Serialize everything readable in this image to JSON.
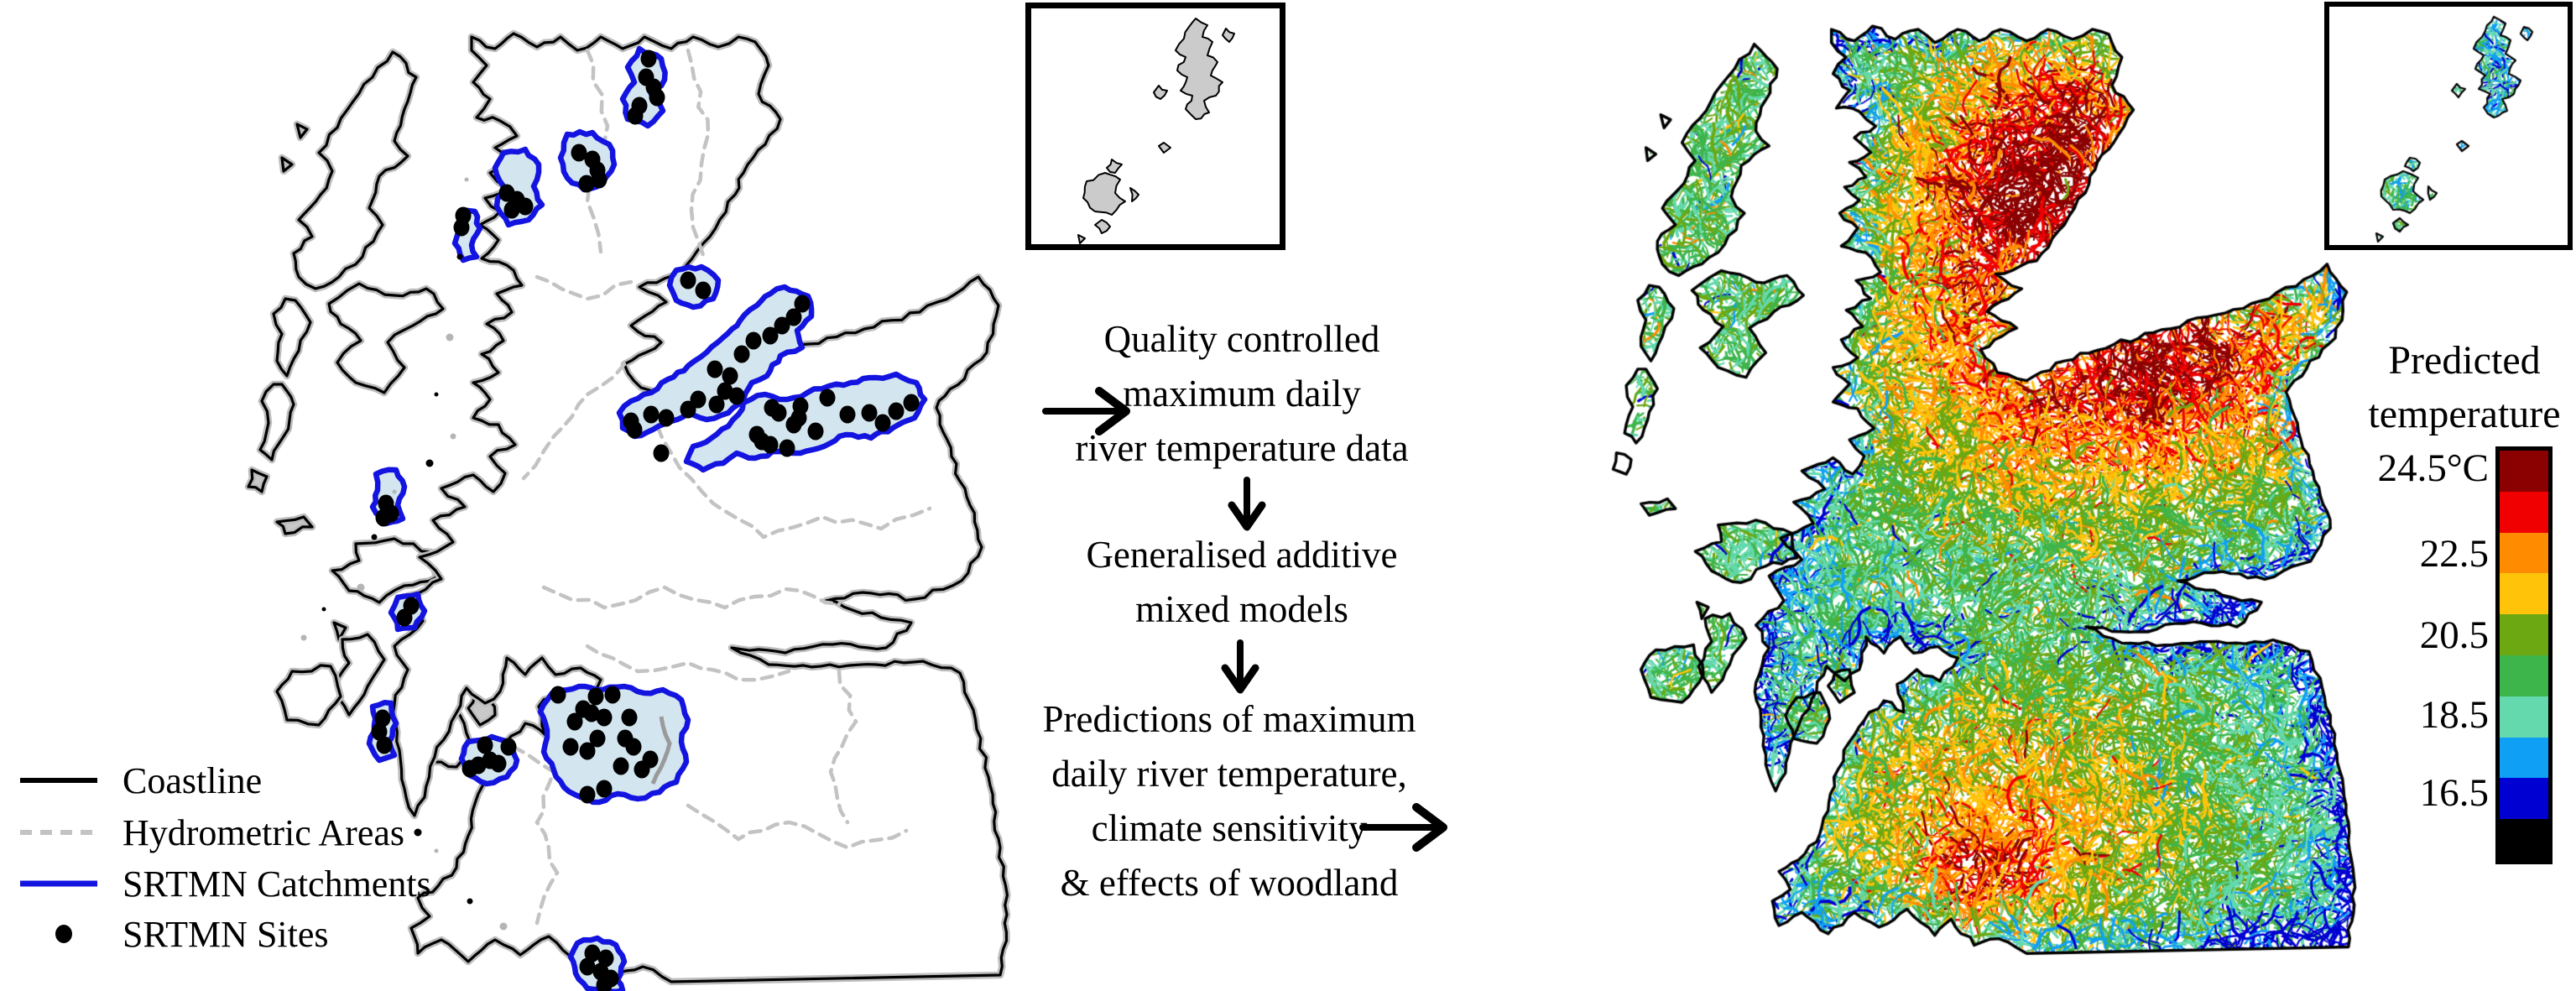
{
  "figure_title": "SRTMN river temperature monitoring and prediction maps of Scotland",
  "left_map": {
    "legend": {
      "items": [
        {
          "label": "Coastline",
          "symbol": "solid-line",
          "color": "#000000"
        },
        {
          "label": "Hydrometric Areas",
          "symbol": "dashed-line",
          "color": "#c3c3c3"
        },
        {
          "label": "SRTMN Catchments",
          "symbol": "solid-line",
          "color": "#1414e0"
        },
        {
          "label": "SRTMN Sites",
          "symbol": "dot",
          "color": "#000000"
        }
      ]
    },
    "styles": {
      "coast_color": "#000000",
      "coast_halo": "#bdbdbd",
      "hydro_color": "#c3c3c3",
      "catchment_fill": "#d3e5ee",
      "catchment_stroke": "#1414e0",
      "site_color": "#000000",
      "small_island_fill": "#c9c9c9"
    },
    "catchments": [
      {
        "poly": [
          [
            762,
            58
          ],
          [
            788,
            70
          ],
          [
            792,
            95
          ],
          [
            776,
            112
          ],
          [
            790,
            132
          ],
          [
            772,
            150
          ],
          [
            748,
            142
          ],
          [
            742,
            118
          ],
          [
            756,
            98
          ],
          [
            748,
            80
          ]
        ],
        "sites": [
          [
            773,
            70
          ],
          [
            770,
            92
          ],
          [
            779,
            104
          ],
          [
            783,
            116
          ],
          [
            762,
            126
          ],
          [
            757,
            138
          ]
        ]
      },
      {
        "poly": [
          [
            676,
            160
          ],
          [
            706,
            158
          ],
          [
            726,
            172
          ],
          [
            732,
            196
          ],
          [
            718,
            218
          ],
          [
            696,
            226
          ],
          [
            676,
            212
          ],
          [
            668,
            188
          ],
          [
            672,
            170
          ]
        ],
        "sites": [
          [
            690,
            182
          ],
          [
            706,
            190
          ],
          [
            712,
            203
          ],
          [
            714,
            214
          ],
          [
            699,
            219
          ]
        ]
      },
      {
        "poly": [
          [
            600,
            182
          ],
          [
            626,
            178
          ],
          [
            642,
            196
          ],
          [
            636,
            222
          ],
          [
            646,
            244
          ],
          [
            630,
            262
          ],
          [
            606,
            268
          ],
          [
            592,
            246
          ],
          [
            600,
            222
          ],
          [
            590,
            200
          ]
        ],
        "sites": [
          [
            604,
            230
          ],
          [
            616,
            238
          ],
          [
            626,
            246
          ],
          [
            610,
            250
          ]
        ]
      },
      {
        "poly": [
          [
            548,
            254
          ],
          [
            566,
            252
          ],
          [
            572,
            272
          ],
          [
            562,
            292
          ],
          [
            568,
            306
          ],
          [
            552,
            310
          ],
          [
            542,
            290
          ],
          [
            548,
            272
          ]
        ],
        "sites": [
          [
            552,
            257
          ],
          [
            550,
            271
          ]
        ]
      },
      {
        "poly": [
          [
            806,
            322
          ],
          [
            836,
            318
          ],
          [
            856,
            334
          ],
          [
            850,
            356
          ],
          [
            826,
            366
          ],
          [
            806,
            358
          ],
          [
            798,
            340
          ]
        ],
        "sites": [
          [
            820,
            334
          ],
          [
            838,
            346
          ]
        ]
      },
      {
        "poly": [
          [
            448,
            565
          ],
          [
            472,
            560
          ],
          [
            482,
            580
          ],
          [
            474,
            602
          ],
          [
            480,
            618
          ],
          [
            460,
            624
          ],
          [
            444,
            604
          ],
          [
            450,
            584
          ]
        ],
        "sites": [
          [
            460,
            600
          ],
          [
            466,
            612
          ],
          [
            457,
            617
          ]
        ]
      },
      {
        "poly": [
          [
            474,
            712
          ],
          [
            498,
            708
          ],
          [
            506,
            728
          ],
          [
            494,
            748
          ],
          [
            474,
            750
          ],
          [
            466,
            730
          ]
        ],
        "sites": [
          [
            490,
            722
          ],
          [
            482,
            736
          ]
        ]
      },
      {
        "poly": [
          [
            444,
            842
          ],
          [
            466,
            838
          ],
          [
            472,
            862
          ],
          [
            464,
            884
          ],
          [
            470,
            900
          ],
          [
            452,
            906
          ],
          [
            440,
            886
          ],
          [
            446,
            864
          ]
        ],
        "sites": [
          [
            456,
            856
          ],
          [
            452,
            872
          ],
          [
            458,
            888
          ]
        ]
      },
      {
        "poly": [
          [
            935,
            342
          ],
          [
            963,
            353
          ],
          [
            967,
            377
          ],
          [
            950,
            394
          ],
          [
            956,
            414
          ],
          [
            930,
            424
          ],
          [
            914,
            448
          ],
          [
            896,
            456
          ],
          [
            886,
            476
          ],
          [
            868,
            492
          ],
          [
            842,
            500
          ],
          [
            820,
            492
          ],
          [
            800,
            502
          ],
          [
            778,
            512
          ],
          [
            756,
            520
          ],
          [
            742,
            510
          ],
          [
            738,
            492
          ],
          [
            752,
            478
          ],
          [
            776,
            468
          ],
          [
            796,
            452
          ],
          [
            820,
            436
          ],
          [
            842,
            420
          ],
          [
            862,
            402
          ],
          [
            882,
            382
          ],
          [
            902,
            364
          ],
          [
            918,
            350
          ]
        ],
        "sites": [
          [
            956,
            362
          ],
          [
            946,
            378
          ],
          [
            932,
            388
          ],
          [
            918,
            400
          ],
          [
            898,
            406
          ],
          [
            884,
            422
          ],
          [
            870,
            448
          ],
          [
            852,
            440
          ],
          [
            864,
            466
          ],
          [
            878,
            472
          ],
          [
            854,
            482
          ],
          [
            832,
            476
          ],
          [
            820,
            488
          ],
          [
            794,
            498
          ],
          [
            776,
            494
          ],
          [
            752,
            502
          ],
          [
            756,
            512
          ],
          [
            788,
            540
          ]
        ]
      },
      {
        "poly": [
          [
            886,
            480
          ],
          [
            912,
            470
          ],
          [
            938,
            476
          ],
          [
            962,
            468
          ],
          [
            988,
            460
          ],
          [
            1014,
            456
          ],
          [
            1044,
            450
          ],
          [
            1068,
            446
          ],
          [
            1092,
            456
          ],
          [
            1102,
            476
          ],
          [
            1090,
            498
          ],
          [
            1064,
            510
          ],
          [
            1038,
            522
          ],
          [
            1008,
            518
          ],
          [
            982,
            532
          ],
          [
            954,
            540
          ],
          [
            928,
            538
          ],
          [
            900,
            546
          ],
          [
            878,
            540
          ],
          [
            862,
            552
          ],
          [
            838,
            560
          ],
          [
            818,
            550
          ],
          [
            826,
            532
          ],
          [
            848,
            522
          ],
          [
            868,
            508
          ],
          [
            880,
            494
          ]
        ],
        "sites": [
          [
            920,
            486
          ],
          [
            928,
            492
          ],
          [
            954,
            484
          ],
          [
            986,
            474
          ],
          [
            952,
            498
          ],
          [
            946,
            506
          ],
          [
            902,
            518
          ],
          [
            908,
            526
          ],
          [
            918,
            530
          ],
          [
            938,
            534
          ],
          [
            972,
            514
          ],
          [
            1010,
            494
          ],
          [
            1036,
            492
          ],
          [
            1052,
            504
          ],
          [
            1068,
            490
          ],
          [
            1086,
            480
          ]
        ]
      },
      {
        "poly": [
          [
            558,
            884
          ],
          [
            586,
            878
          ],
          [
            608,
            886
          ],
          [
            616,
            906
          ],
          [
            604,
            926
          ],
          [
            580,
            934
          ],
          [
            560,
            924
          ],
          [
            550,
            904
          ]
        ],
        "sites": [
          [
            578,
            888
          ],
          [
            606,
            890
          ],
          [
            584,
            906
          ],
          [
            570,
            912
          ],
          [
            594,
            910
          ],
          [
            560,
            916
          ]
        ]
      },
      {
        "poly": [
          [
            658,
            826
          ],
          [
            690,
            818
          ],
          [
            718,
            822
          ],
          [
            744,
            818
          ],
          [
            768,
            826
          ],
          [
            790,
            822
          ],
          [
            812,
            834
          ],
          [
            820,
            858
          ],
          [
            812,
            884
          ],
          [
            818,
            908
          ],
          [
            806,
            932
          ],
          [
            786,
            944
          ],
          [
            760,
            952
          ],
          [
            736,
            946
          ],
          [
            714,
            956
          ],
          [
            692,
            950
          ],
          [
            672,
            938
          ],
          [
            660,
            918
          ],
          [
            648,
            896
          ],
          [
            652,
            870
          ],
          [
            644,
            848
          ]
        ],
        "sites": [
          [
            665,
            828
          ],
          [
            710,
            830
          ],
          [
            730,
            828
          ],
          [
            695,
            845
          ],
          [
            705,
            850
          ],
          [
            685,
            860
          ],
          [
            720,
            855
          ],
          [
            750,
            855
          ],
          [
            745,
            880
          ],
          [
            712,
            880
          ],
          [
            680,
            890
          ],
          [
            700,
            895
          ],
          [
            755,
            890
          ],
          [
            775,
            905
          ],
          [
            765,
            917
          ],
          [
            740,
            913
          ],
          [
            720,
            940
          ],
          [
            700,
            947
          ]
        ],
        "inner_boundary": [
          [
            788,
            854
          ],
          [
            798,
            886
          ],
          [
            788,
            914
          ],
          [
            778,
            934
          ]
        ]
      },
      {
        "poly": [
          [
            688,
            1124
          ],
          [
            712,
            1118
          ],
          [
            734,
            1126
          ],
          [
            744,
            1146
          ],
          [
            736,
            1168
          ],
          [
            742,
            1180
          ],
          [
            720,
            1181
          ],
          [
            700,
            1178
          ],
          [
            686,
            1160
          ],
          [
            680,
            1140
          ]
        ],
        "sites": [
          [
            706,
            1136
          ],
          [
            722,
            1142
          ],
          [
            700,
            1152
          ],
          [
            716,
            1158
          ],
          [
            728,
            1166
          ],
          [
            720,
            1174
          ]
        ]
      }
    ]
  },
  "flow": {
    "blocks": [
      {
        "lines": [
          "Quality controlled",
          "maximum daily",
          "river temperature data"
        ]
      },
      {
        "lines": [
          "Generalised additive",
          "mixed models"
        ]
      },
      {
        "lines": [
          "Predictions of maximum",
          "daily river temperature,",
          "climate sensitivity",
          "& effects of woodland"
        ]
      }
    ],
    "arrows": [
      "right-into-block-1",
      "down-block-1-to-2",
      "down-block-2-to-3",
      "right-out-of-block-3"
    ]
  },
  "right_map": {
    "description_in_pixels": "River network coloured by predicted maximum daily temperature",
    "palette_cold_to_hot": [
      "#0000d2",
      "#0f9ff5",
      "#63d9ad",
      "#3eb54b",
      "#6ca811",
      "#ffc40a",
      "#ff8c00",
      "#f00000",
      "#8b0000"
    ]
  },
  "colorbar": {
    "title_lines": [
      "Predicted",
      "temperature"
    ],
    "ticks": [
      "24.5°C",
      "22.5",
      "20.5",
      "18.5",
      "16.5"
    ],
    "tick_values": [
      24.5,
      22.5,
      20.5,
      18.5,
      16.5
    ],
    "units": "°C",
    "segment_colors_top_to_bottom": [
      "#8b0000",
      "#f00000",
      "#ff8c00",
      "#ffc40a",
      "#6ca811",
      "#3eb54b",
      "#63d9ad",
      "#0f9ff5",
      "#0000d2",
      "#000000"
    ]
  }
}
